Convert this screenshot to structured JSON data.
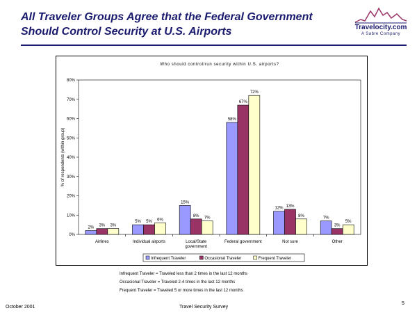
{
  "slide": {
    "title_line1": "All Traveler Groups Agree that the Federal Government",
    "title_line2": "Should Control Security at U.S. Airports",
    "logo_text": "Travelocity.com",
    "logo_sub": "A Sabre Company",
    "definitions": [
      "Infrequent Traveler = Traveled less than 2 times in the last 12 months",
      "Occasional Traveler = Traveled 2-4 times in the last 12 months",
      "Frequent Traveler = Traveled 5 or more times in the last 12 months"
    ],
    "footer_date": "October 2001",
    "footer_center": "Travel Security Survey",
    "page_number": "5"
  },
  "colors": {
    "infrequent": "#9999ff",
    "occasional": "#993366",
    "frequent": "#ffffcc",
    "title": "#1a1a6e"
  },
  "chart_data": {
    "type": "bar",
    "title": "Who should control/run security within U.S. airports?",
    "ylabel": "% of respondents (within group)",
    "xlabel": "",
    "ylim": [
      0,
      80
    ],
    "yticks": [
      "0%",
      "10%",
      "20%",
      "30%",
      "40%",
      "50%",
      "60%",
      "70%",
      "80%"
    ],
    "categories": [
      "Airlines",
      "Individual airports",
      "Local/State government",
      "Federal government",
      "Not sure",
      "Other"
    ],
    "category_lines": [
      [
        "Airlines"
      ],
      [
        "Individual airports"
      ],
      [
        "Local/State",
        "government"
      ],
      [
        "Federal government"
      ],
      [
        "Not sure"
      ],
      [
        "Other"
      ]
    ],
    "series": [
      {
        "name": "Infrequent Traveler",
        "key": "infrequent",
        "values": [
          2,
          5,
          15,
          58,
          12,
          7
        ],
        "labels": [
          "2%",
          "5%",
          "15%",
          "58%",
          "12%",
          "7%"
        ]
      },
      {
        "name": "Occasional Traveler",
        "key": "occasional",
        "values": [
          3,
          5,
          8,
          67,
          13,
          3
        ],
        "labels": [
          "3%",
          "5%",
          "8%",
          "67%",
          "13%",
          "3%"
        ]
      },
      {
        "name": "Frequent Traveler",
        "key": "frequent",
        "values": [
          3,
          6,
          7,
          72,
          8,
          5
        ],
        "labels": [
          "3%",
          "6%",
          "7%",
          "72%",
          "8%",
          "5%"
        ]
      }
    ],
    "legend_position": "bottom"
  }
}
